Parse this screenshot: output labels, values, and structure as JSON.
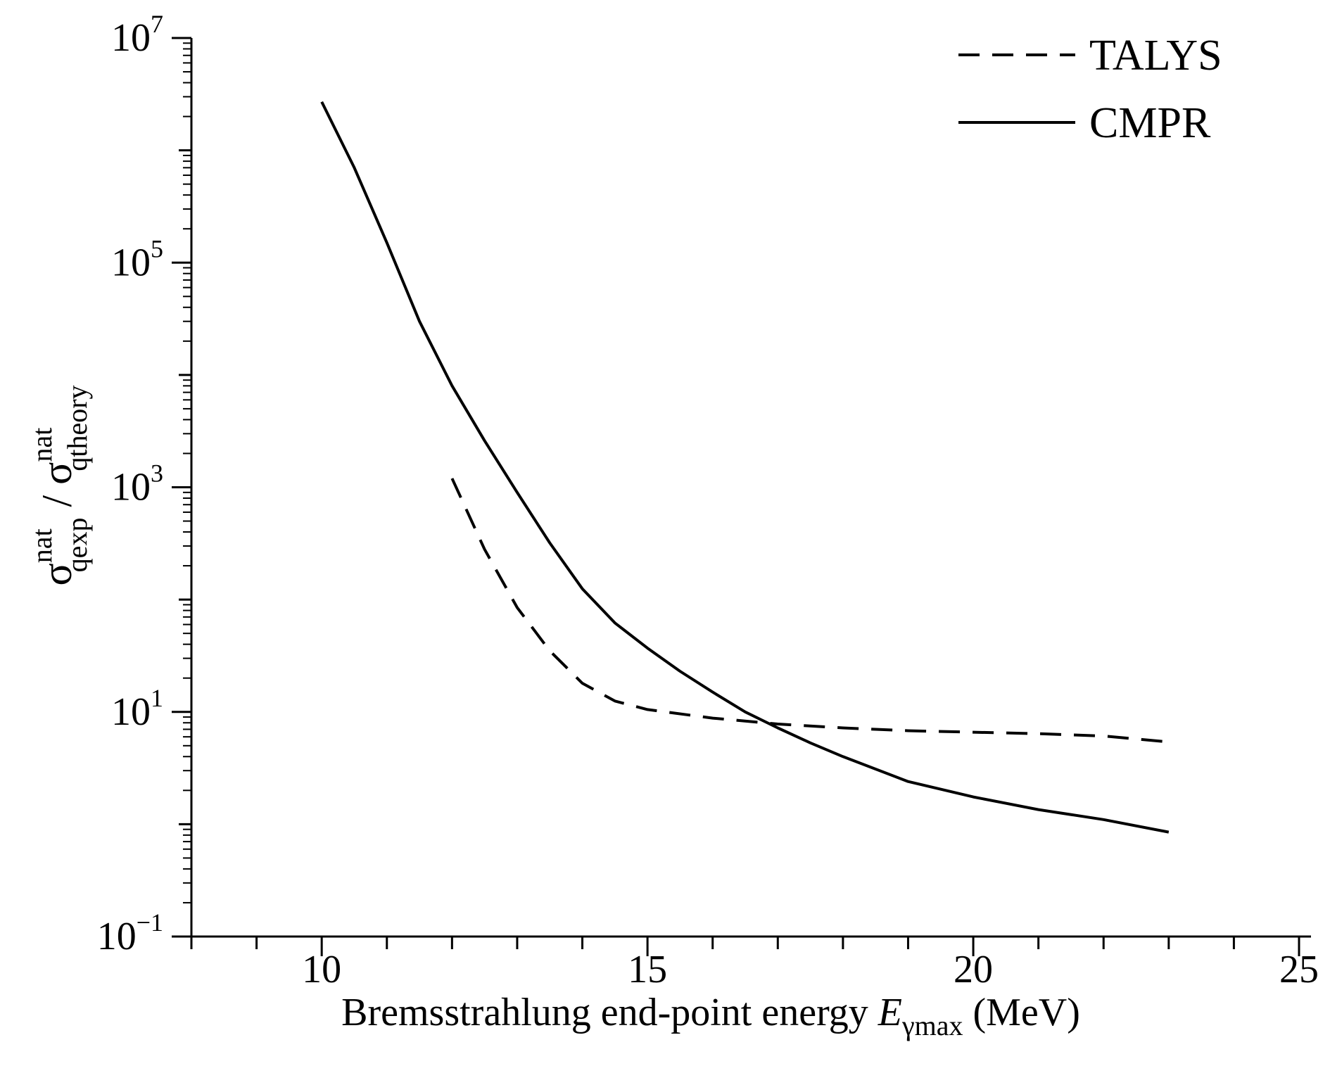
{
  "chart_data": {
    "type": "line",
    "x_axis": {
      "label_prefix": "Bremsstrahlung end-point energy ",
      "label_var": "E",
      "label_sub": "γmax",
      "label_suffix": " (MeV)",
      "range": [
        8,
        25
      ],
      "major_ticks": [
        10,
        15,
        20,
        25
      ],
      "minor_step": 1
    },
    "y_axis": {
      "scale": "log",
      "range_exponents": [
        -1,
        7
      ],
      "major_exponents": [
        -1,
        1,
        3,
        5,
        7
      ],
      "tick_labels": [
        {
          "base": "10",
          "exp": "−1"
        },
        {
          "base": "10",
          "exp": "1"
        },
        {
          "base": "10",
          "exp": "3"
        },
        {
          "base": "10",
          "exp": "5"
        },
        {
          "base": "10",
          "exp": "7"
        }
      ],
      "label": {
        "sym": "σ",
        "num_sup": "nat",
        "num_sub": "qexp",
        "sep": " / ",
        "den_sup": "nat",
        "den_sub": "qtheory"
      }
    },
    "series": [
      {
        "name": "TALYS",
        "style": "dashed",
        "x": [
          12.0,
          12.5,
          13.0,
          13.5,
          14.0,
          14.5,
          15.0,
          16.0,
          17.0,
          18.0,
          19.0,
          20.0,
          21.0,
          22.0,
          23.0
        ],
        "y": [
          1200,
          280,
          85,
          35,
          18,
          12.5,
          10.5,
          8.8,
          7.8,
          7.2,
          6.8,
          6.6,
          6.4,
          6.1,
          5.4
        ]
      },
      {
        "name": "CMPR",
        "style": "solid",
        "x": [
          10.0,
          10.5,
          11.0,
          11.5,
          12.0,
          12.5,
          13.0,
          13.5,
          14.0,
          14.5,
          15.0,
          15.5,
          16.0,
          16.5,
          17.0,
          17.5,
          18.0,
          19.0,
          20.0,
          21.0,
          22.0,
          23.0
        ],
        "y": [
          2700000,
          700000,
          150000,
          30000,
          8000,
          2600,
          900,
          320,
          125,
          62,
          37,
          23,
          15,
          10,
          7.2,
          5.3,
          4.0,
          2.4,
          1.75,
          1.35,
          1.1,
          0.85
        ]
      }
    ],
    "legend": {
      "position": "top-right",
      "entries": [
        "TALYS",
        "CMPR"
      ]
    }
  }
}
